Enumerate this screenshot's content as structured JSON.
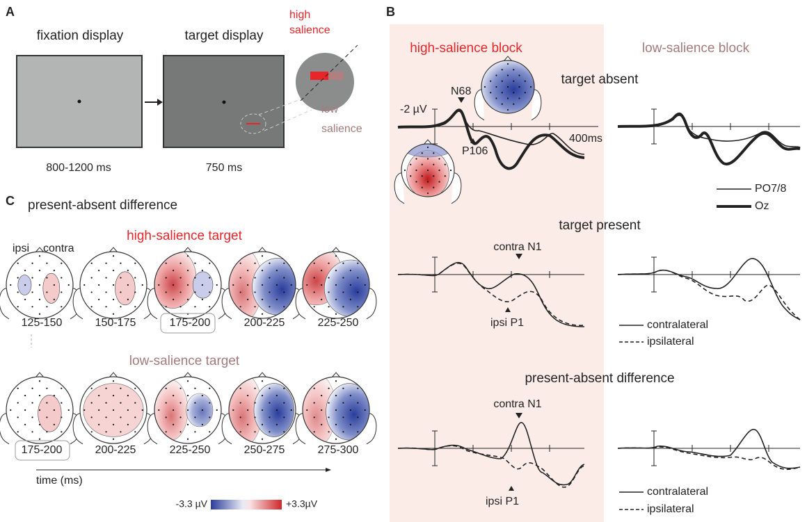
{
  "panel_a": {
    "label": "A",
    "fixation_title": "fixation display",
    "target_title": "target display",
    "high_salience": [
      "high",
      "salience"
    ],
    "low_salience": [
      "low",
      "salience"
    ],
    "fixation_duration": "800-1200 ms",
    "target_duration": "750 ms"
  },
  "panel_b": {
    "label": "B",
    "high_block": "high-salience block",
    "low_block": "low-salience block",
    "target_absent": {
      "title": "target absent",
      "scale": "-2 µV",
      "n68": "N68",
      "p106": "P106",
      "time": "400ms",
      "legend": [
        "PO7/8",
        "Oz"
      ]
    },
    "target_present": {
      "title": "target present",
      "contra": "contra N1",
      "ipsi": "ipsi P1",
      "legend": [
        "contralateral",
        "ipsilateral"
      ]
    },
    "difference": {
      "title": "present-absent difference",
      "contra": "contra N1",
      "ipsi": "ipsi P1",
      "legend": [
        "contralateral",
        "ipsilateral"
      ]
    }
  },
  "panel_c": {
    "label": "C",
    "title": "present-absent difference",
    "high_title": "high-salience target",
    "ipsi": "ipsi",
    "contra": "contra",
    "high_times": [
      "125-150",
      "150-175",
      "175-200",
      "200-225",
      "225-250"
    ],
    "low_title": "low-salience target",
    "low_times": [
      "175-200",
      "200-225",
      "225-250",
      "250-275",
      "275-300"
    ],
    "time_axis": "time (ms)",
    "colorbar_min": "-3.3  µV",
    "colorbar_max": "+3.3µV"
  }
}
